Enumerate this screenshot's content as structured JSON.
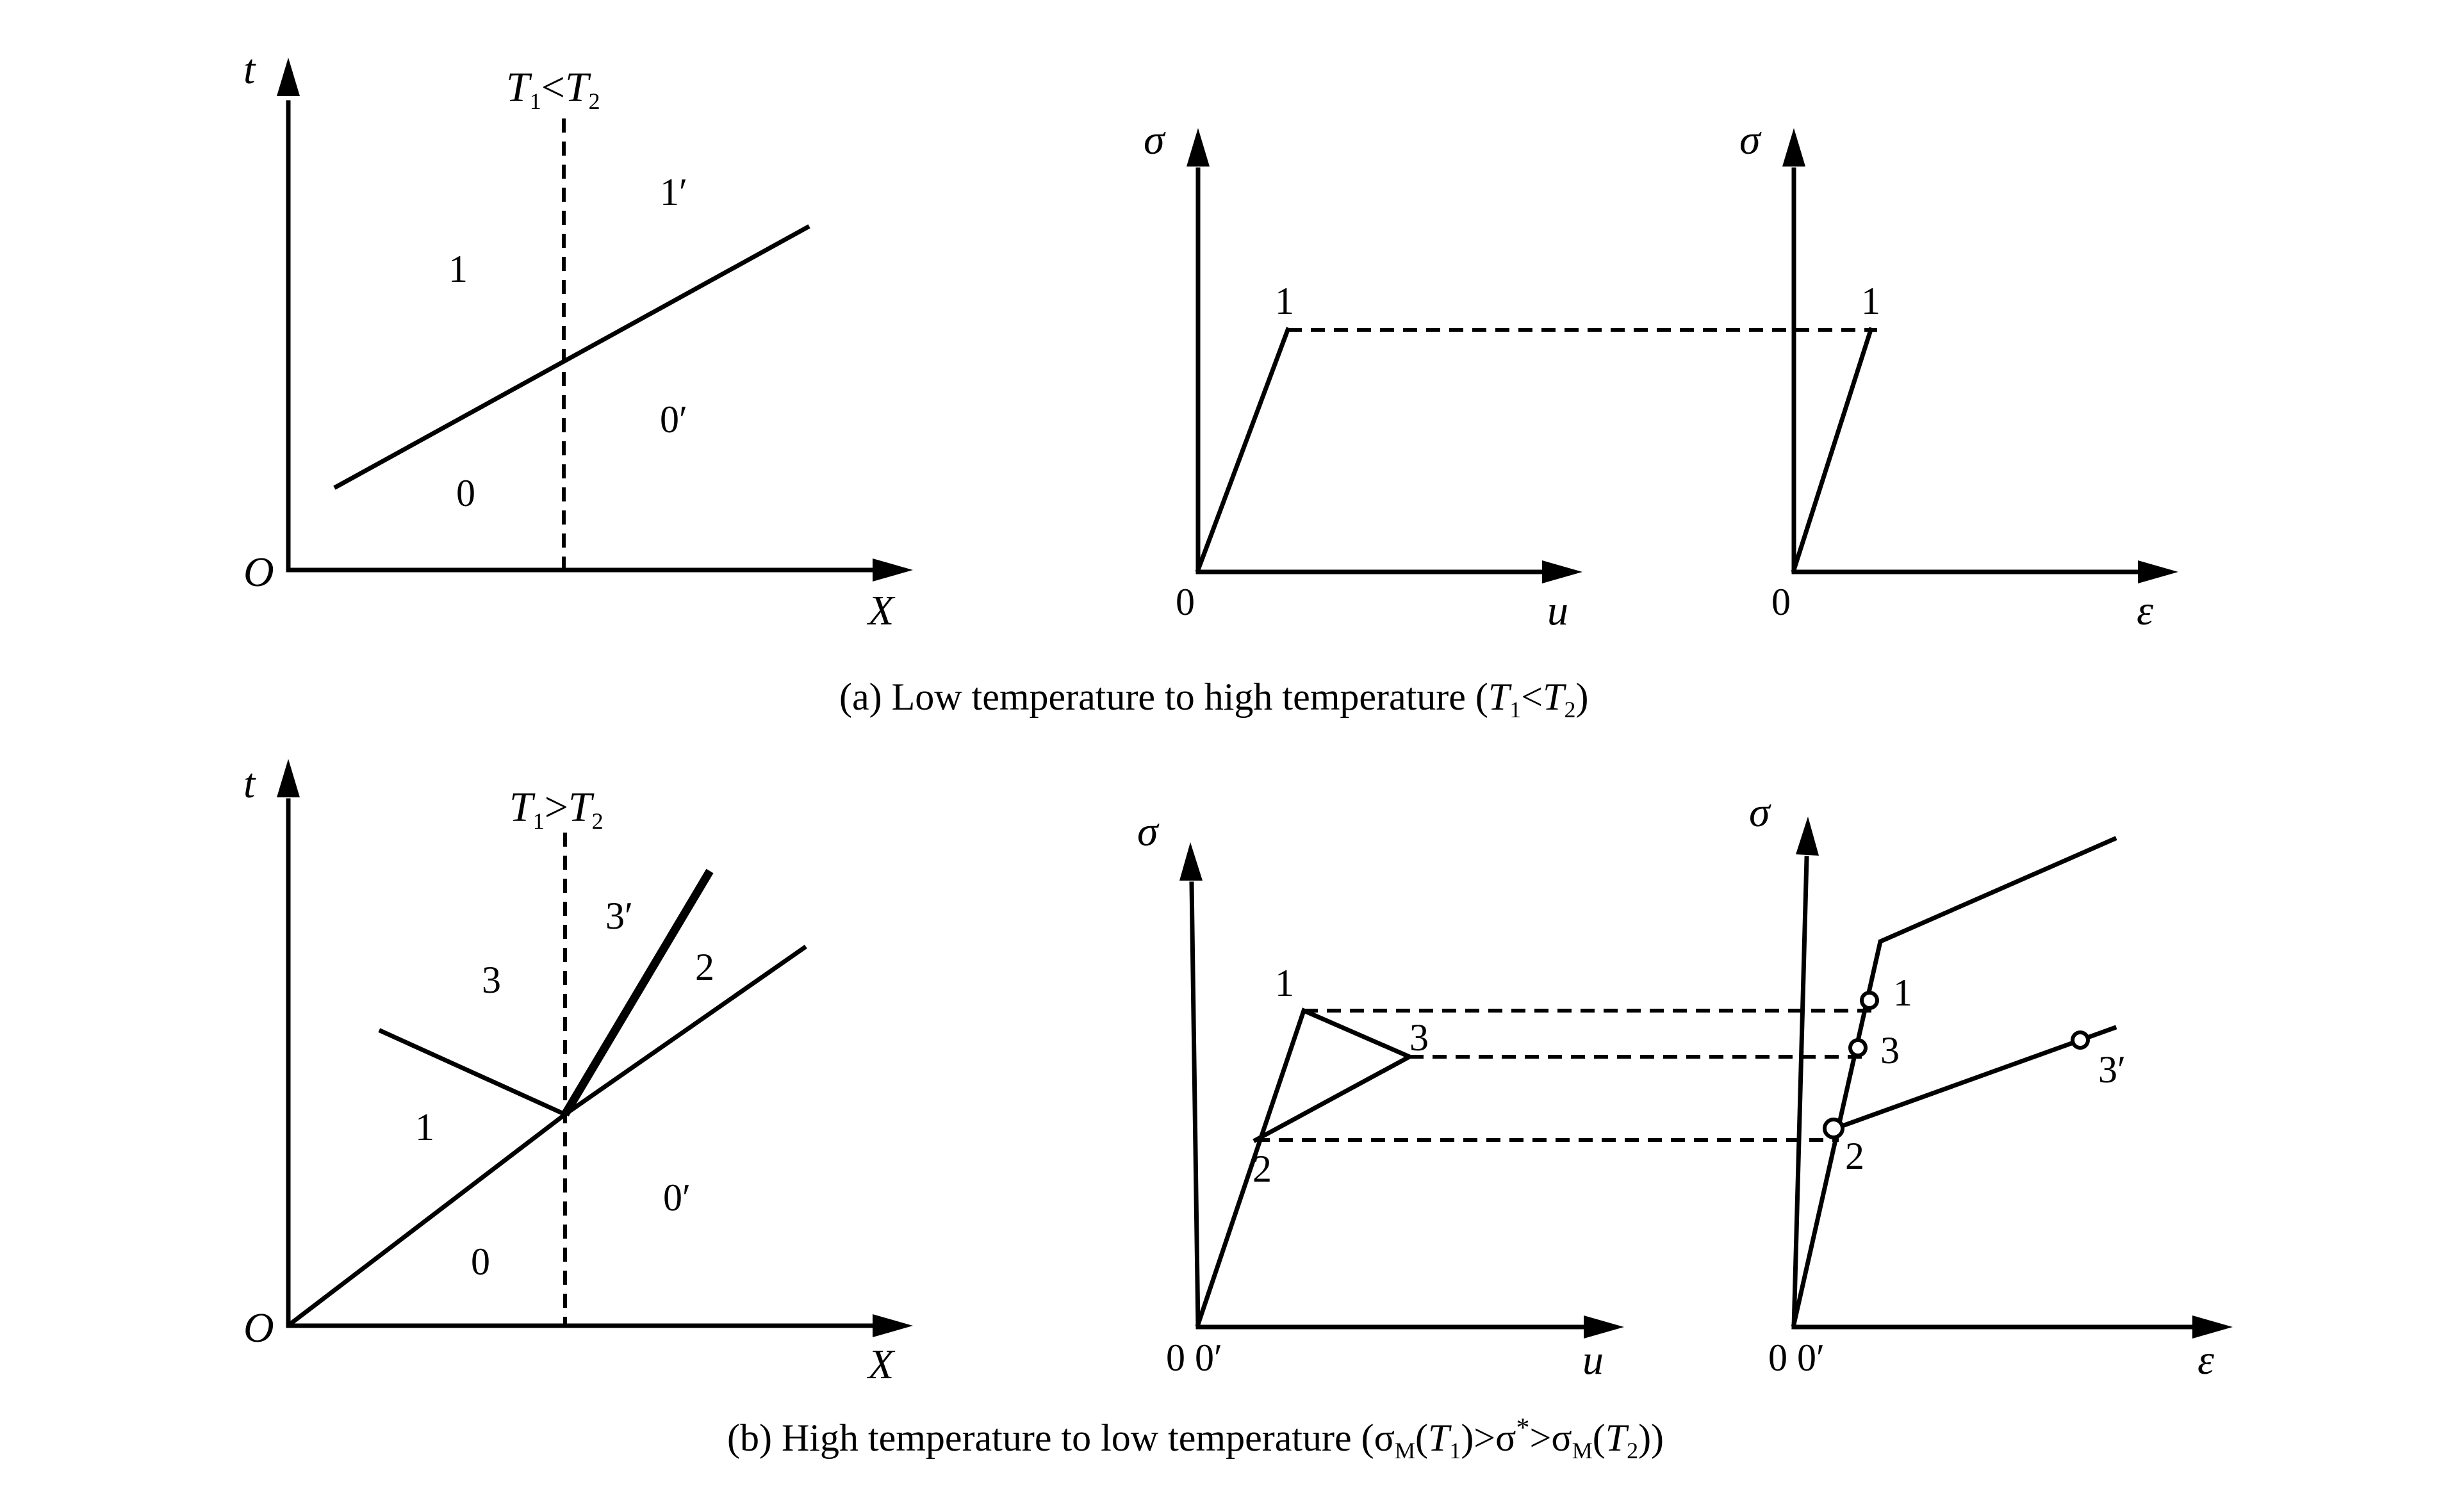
{
  "panel_a": {
    "xt_diagram": {
      "y_axis_label": "t",
      "x_axis_label": "X",
      "origin_label": "O",
      "interface_label_T1": "T",
      "interface_label_sub1": "1",
      "interface_label_rel": "<",
      "interface_label_T2": "T",
      "interface_label_sub2": "2",
      "region_labels": [
        "1",
        "1′",
        "0′",
        "0"
      ]
    },
    "stress_displacement": {
      "y_axis_label": "σ",
      "x_axis_label": "u",
      "origin_label": "0",
      "point_labels": [
        "1"
      ]
    },
    "stress_strain": {
      "y_axis_label": "σ",
      "x_axis_label": "ε",
      "origin_label": "0",
      "point_labels": [
        "1"
      ]
    },
    "caption_pre": "(a) Low temperature to high temperature (",
    "caption_T1": "T",
    "caption_sub1": "1",
    "caption_rel": "<",
    "caption_T2": "T",
    "caption_sub2": "2",
    "caption_post": ")"
  },
  "panel_b": {
    "xt_diagram": {
      "y_axis_label": "t",
      "x_axis_label": "X",
      "origin_label": "O",
      "interface_label_T1": "T",
      "interface_label_sub1": "1",
      "interface_label_rel": ">",
      "interface_label_T2": "T",
      "interface_label_sub2": "2",
      "region_labels": [
        "3",
        "3′",
        "2",
        "1",
        "0′",
        "0"
      ]
    },
    "stress_displacement": {
      "y_axis_label": "σ",
      "x_axis_label": "u",
      "origin_label": "0 0′",
      "point_labels": [
        "1",
        "3",
        "2"
      ]
    },
    "stress_strain": {
      "y_axis_label": "σ",
      "x_axis_label": "ε",
      "origin_label": "0 0′",
      "point_labels": [
        "1",
        "3",
        "2",
        "3′"
      ]
    },
    "caption_pre": "(b)  High temperature to low temperature (",
    "caption_sigma1": "σ",
    "caption_M1": "M",
    "caption_T1": "T",
    "caption_sub1": "1",
    "caption_mid1": ")>",
    "caption_sigmastar": "σ",
    "caption_star": "*",
    "caption_mid2": ">",
    "caption_sigma2": "σ",
    "caption_M2": "M",
    "caption_T2": "T",
    "caption_sub2": "2",
    "caption_post": "))",
    "caption_paren": "("
  }
}
